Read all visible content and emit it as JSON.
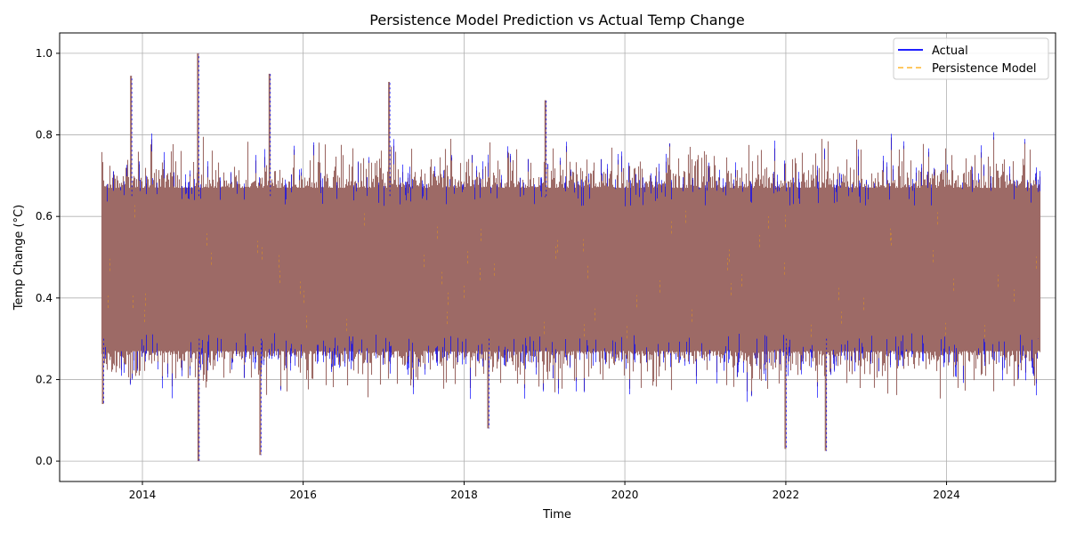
{
  "chart_data": {
    "type": "line",
    "title": "Persistence Model Prediction vs Actual Temp Change",
    "xlabel": "Time",
    "ylabel": "Temp Change (°C)",
    "xlim": [
      "2012-12-21",
      "2025-05-10"
    ],
    "ylim": [
      -0.05,
      1.05
    ],
    "x_ticks": [
      {
        "value": "2014-01-01",
        "label": "2014"
      },
      {
        "value": "2016-01-01",
        "label": "2016"
      },
      {
        "value": "2018-01-01",
        "label": "2018"
      },
      {
        "value": "2020-01-01",
        "label": "2020"
      },
      {
        "value": "2022-01-01",
        "label": "2022"
      },
      {
        "value": "2024-01-01",
        "label": "2024"
      }
    ],
    "y_ticks": [
      {
        "value": 0.0,
        "label": "0.0"
      },
      {
        "value": 0.2,
        "label": "0.2"
      },
      {
        "value": 0.4,
        "label": "0.4"
      },
      {
        "value": 0.6,
        "label": "0.6"
      },
      {
        "value": 0.8,
        "label": "0.8"
      },
      {
        "value": 1.0,
        "label": "1.0"
      }
    ],
    "grid": true,
    "legend_position": "top-right",
    "date_range": [
      "2013-07-01",
      "2025-03-01"
    ],
    "series": [
      {
        "name": "Actual",
        "color": "#0000ff",
        "style": "solid",
        "summary": {
          "typical_low": 0.3,
          "typical_high": 0.65,
          "min": 0.0,
          "max": 1.0
        },
        "extremes": [
          {
            "x": "2013-07-05",
            "y": 0.14
          },
          {
            "x": "2013-11-10",
            "y": 0.945
          },
          {
            "x": "2014-09-10",
            "y": 1.0
          },
          {
            "x": "2014-09-12",
            "y": 0.0
          },
          {
            "x": "2015-06-20",
            "y": 0.015
          },
          {
            "x": "2015-08-01",
            "y": 0.95
          },
          {
            "x": "2017-01-25",
            "y": 0.93
          },
          {
            "x": "2018-04-20",
            "y": 0.08
          },
          {
            "x": "2019-01-05",
            "y": 0.885
          },
          {
            "x": "2021-12-30",
            "y": 0.03
          },
          {
            "x": "2022-07-01",
            "y": 0.025
          },
          {
            "x": "2025-02-15",
            "y": 0.3
          }
        ]
      },
      {
        "name": "Persistence Model",
        "color": "#ffa500",
        "style": "dashed"
      }
    ]
  },
  "legend": {
    "items": [
      {
        "label": "Actual",
        "color": "#0000ff",
        "style": "solid"
      },
      {
        "label": "Persistence Model",
        "color": "#ffa500",
        "style": "dashed"
      }
    ]
  },
  "colors": {
    "band_fill": "#9d6a66",
    "grid": "#b0b0b0",
    "axis": "#000000"
  }
}
